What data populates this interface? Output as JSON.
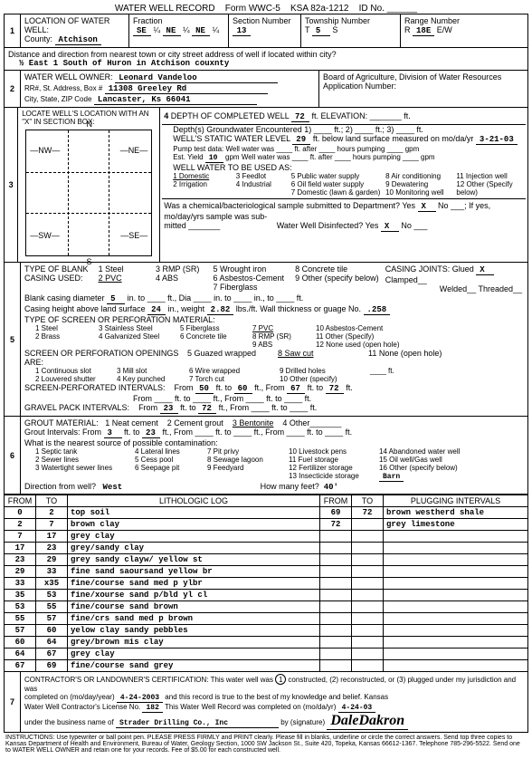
{
  "header": {
    "title": "WATER WELL RECORD",
    "form": "Form WWC-5",
    "ksa": "KSA 82a-1212",
    "idno": "ID No."
  },
  "sec1": {
    "title": "LOCATION OF WATER WELL:",
    "county_lbl": "County:",
    "county": "Atchison",
    "fraction_lbl": "Fraction",
    "frac1": "SE",
    "q1": "¼",
    "frac2": "NE",
    "q2": "¼",
    "frac3": "NE",
    "q3": "¼",
    "secnum_lbl": "Section Number",
    "secnum": "13",
    "twp_lbl": "Township Number",
    "twp_t": "T",
    "twp": "5",
    "twp_s": "S",
    "rng_lbl": "Range Number",
    "rng_r": "R",
    "rng": "18E",
    "rng_ew": "E/W",
    "dist_lbl": "Distance and direction from nearest town or city street address of well if located within city?",
    "dist": "½ East 1 South of Huron in Atchison couxnty"
  },
  "sec2": {
    "title": "WATER WELL OWNER:",
    "owner": "Leonard Vandeloo",
    "addr_lbl": "RR#, St. Address, Box #",
    "addr": "11308 Greeley Rd",
    "city_lbl": "City, State, ZIP Code",
    "city": "Lancaster, Ks 66041",
    "board": "Board of Agriculture, Division of Water Resources",
    "appnum": "Application Number:"
  },
  "sec3": {
    "title": "LOCATE WELL'S LOCATION WITH AN \"X\" IN SECTION BOX:",
    "n": "N",
    "s": "S",
    "nw": "—NW—",
    "ne": "—NE—",
    "sw": "—SW—",
    "se": "—SE—"
  },
  "sec4": {
    "title": "DEPTH OF COMPLETED WELL",
    "depth": "72",
    "ft": "ft.",
    "elev_lbl": "ELEVATION:",
    "dgw_lbl": "Depth(s) Groundwater Encountered",
    "swl_lbl": "WELL'S STATIC WATER LEVEL",
    "swl": "29",
    "swl_txt": "ft. below land surface measured on mo/da/yr",
    "swl_date": "3-21-03",
    "pump_lbl": "Pump test data:",
    "wwas": "Well water was",
    "ftafter": "ft. after",
    "hrspump": "hours pumping",
    "gpm": "gpm",
    "estyield_lbl": "Est. Yield",
    "estyield": "10",
    "gpm2": "gpm",
    "wwas2": "Well water was",
    "use_lbl": "WELL WATER TO BE USED AS:",
    "u1": "1 Domestic",
    "u2": "2 Irrigation",
    "u3": "3 Feedlot",
    "u4": "4 Industrial",
    "u5": "5 Public water supply",
    "u6": "6 Oil field water supply",
    "u7": "7 Domestic (lawn & garden)",
    "u8": "8 Air conditioning",
    "u9": "9 Dewatering",
    "u10": "10 Monitoring well",
    "u11": "11 Injection well",
    "u12": "12 Other (Specify below)",
    "chem_lbl": "Was a chemical/bacteriological sample submitted to Department? Yes",
    "chem_yes": "X",
    "chem_no_lbl": "No",
    "chem_date": "; If yes, mo/day/yrs sample was sub-",
    "mitted": "mitted",
    "disinf": "Water Well Disinfected? Yes",
    "disinf_yes": "X",
    "disinf_no": "No"
  },
  "sec5": {
    "title": "TYPE OF BLANK CASING USED:",
    "c1": "1 Steel",
    "c2": "2 PVC",
    "c3": "3 RMP (SR)",
    "c4": "4 ABS",
    "c5": "5 Wrought iron",
    "c6": "6 Asbestos-Cement",
    "c7": "7 Fiberglass",
    "c8": "8 Concrete tile",
    "c9": "9 Other (specify below)",
    "joints_lbl": "CASING JOINTS: Glued",
    "joints_g": "X",
    "joints_c": "Clamped",
    "joints_w": "Welded",
    "joints_t": "Threaded",
    "bcd_lbl": "Blank casing diameter",
    "bcd": "5",
    "into": "in. to",
    "into2": "in., to",
    "ftdia": "ft., Dia",
    "chls_lbl": "Casing height above land surface",
    "chls": "24",
    "inwt": "in., weight",
    "wt": "2.82",
    "lbft": "lbs./ft. Wall thickness or guage No.",
    "gauge": ".258",
    "tsp_lbl": "TYPE OF SCREEN OR PERFORATION MATERIAL:",
    "s1": "1 Steel",
    "s2": "2 Brass",
    "s3": "3 Stainless Steel",
    "s4": "4 Galvanized Steel",
    "s5": "5 Fiberglass",
    "s6": "6 Concrete tile",
    "s7": "7 PVC",
    "s8": "8 RMP (SR)",
    "s9": "9 ABS",
    "s10": "10 Asbestos-Cement",
    "s11": "11 Other (Specify)",
    "s12": "12 None used (open hole)",
    "spo_lbl": "SCREEN OR PERFORATION OPENINGS ARE:",
    "o1": "1 Continuous slot",
    "o2": "2 Louvered shutter",
    "o3": "3 Mill slot",
    "o4": "4 Key punched",
    "o5": "5 Guazed wrapped",
    "o6": "6 Wire wrapped",
    "o7": "7 Torch cut",
    "o8": "8 Saw cut",
    "o9": "9 Drilled holes",
    "o10": "10 Other (specify)",
    "o11": "11 None (open hole)",
    "spi_lbl": "SCREEN-PERFORATED INTERVALS:",
    "from": "From",
    "ft_to": "ft. to",
    "ft_from": "ft., From",
    "spi_f1": "50",
    "spi_t1": "60",
    "spi_f2": "67",
    "spi_t2": "72",
    "gpi_lbl": "GRAVEL PACK INTERVALS:",
    "gpi_f1": "23",
    "gpi_t1": "72"
  },
  "sec6": {
    "title": "GROUT MATERIAL:",
    "g1": "1 Neat cement",
    "g2": "2 Cement grout",
    "g3": "3 Bentonite",
    "g4": "4 Other",
    "gi_lbl": "Grout Intervals:",
    "gi_f1": "3",
    "gi_t1": "23",
    "contam_lbl": "What is the nearest source of possible contamination:",
    "p1": "1 Septic tank",
    "p2": "2 Sewer lines",
    "p3": "3 Watertight sewer lines",
    "p4": "4 Lateral lines",
    "p5": "5 Cess pool",
    "p6": "6 Seepage pit",
    "p7": "7 Pit privy",
    "p8": "8 Sewage lagoon",
    "p9": "9 Feedyard",
    "p10": "10 Livestock pens",
    "p11": "11 Fuel storage",
    "p12": "12 Fertilizer storage",
    "p13": "13 Insecticide storage",
    "p14": "14 Abandoned water well",
    "p15": "15 Oil well/Gas well",
    "p16": "16 Other (specify below)",
    "other_val": "Barn",
    "dir_lbl": "Direction from well?",
    "dir": "West",
    "howmany_lbl": "How many feet?",
    "howmany": "40'"
  },
  "log": {
    "h_from": "FROM",
    "h_to": "TO",
    "h_lith": "LITHOLOGIC LOG",
    "h_from2": "FROM",
    "h_to2": "TO",
    "h_plug": "PLUGGING INTERVALS",
    "rows": [
      {
        "f": "0",
        "t": "2",
        "d": "top soil",
        "f2": "69",
        "t2": "72",
        "p": "brown westherd shale"
      },
      {
        "f": "2",
        "t": "7",
        "d": "brown clay",
        "f2": "72",
        "t2": "",
        "p": "grey limestone"
      },
      {
        "f": "7",
        "t": "17",
        "d": "grey clay",
        "f2": "",
        "t2": "",
        "p": ""
      },
      {
        "f": "17",
        "t": "23",
        "d": "grey/sandy clay",
        "f2": "",
        "t2": "",
        "p": ""
      },
      {
        "f": "23",
        "t": "29",
        "d": "grey sandy clayw/ yellow st",
        "f2": "",
        "t2": "",
        "p": ""
      },
      {
        "f": "29",
        "t": "33",
        "d": "fine sand saoursand yellow br",
        "f2": "",
        "t2": "",
        "p": ""
      },
      {
        "f": "33",
        "t": "x35",
        "d": "fine/course sand med p ylbr",
        "f2": "",
        "t2": "",
        "p": ""
      },
      {
        "f": "35",
        "t": "53",
        "d": "fine/xourse sand p/bld yl cl",
        "f2": "",
        "t2": "",
        "p": ""
      },
      {
        "f": "53",
        "t": "55",
        "d": "fine/course sand brown",
        "f2": "",
        "t2": "",
        "p": ""
      },
      {
        "f": "55",
        "t": "57",
        "d": "fine/crs sand med p brown",
        "f2": "",
        "t2": "",
        "p": ""
      },
      {
        "f": "57",
        "t": "60",
        "d": "yelow clay sandy pebbles",
        "f2": "",
        "t2": "",
        "p": ""
      },
      {
        "f": "60",
        "t": "64",
        "d": "grey/brown mis clay",
        "f2": "",
        "t2": "",
        "p": ""
      },
      {
        "f": "64",
        "t": "67",
        "d": "grey clay",
        "f2": "",
        "t2": "",
        "p": ""
      },
      {
        "f": "67",
        "t": "69",
        "d": "fine/course sand grey",
        "f2": "",
        "t2": "",
        "p": ""
      }
    ]
  },
  "sec7": {
    "title": "CONTRACTOR'S OR LANDOWNER'S CERTIFICATION:",
    "txt1": "This water well was",
    "opt1": "constructed, (2) reconstructed, or (3) plugged under my jurisdiction and was",
    "circled": "1",
    "txt2": "completed on (mo/day/year)",
    "date1": "4-24-2003",
    "txt3": "and this record is true to the best of my knowledge and belief. Kansas",
    "lic_lbl": "Water Well Contractor's License No.",
    "lic": "182",
    "txt4": "This Water Well Record was completed on (mo/da/yr)",
    "date2": "4-24-03",
    "bus_lbl": "under the business name of",
    "bus": "Strader Drilling Co., Inc",
    "sig_lbl": "by (signature)",
    "sig": "DaleDakron"
  },
  "footer": {
    "txt": "INSTRUCTIONS: Use typewriter or ball point pen. PLEASE PRESS FIRMLY and PRINT clearly. Please fill in blanks, underline or circle the correct answers. Send top three copies to Kansas Department of Health and Environment, Bureau of Water, Geology Section, 1000 SW Jackson St., Suite 420, Topeka, Kansas 66612-1367. Telephone 785-296-5522. Send one to WATER WELL OWNER and retain one for your records. Fee of $5.00 for each constructed well."
  }
}
